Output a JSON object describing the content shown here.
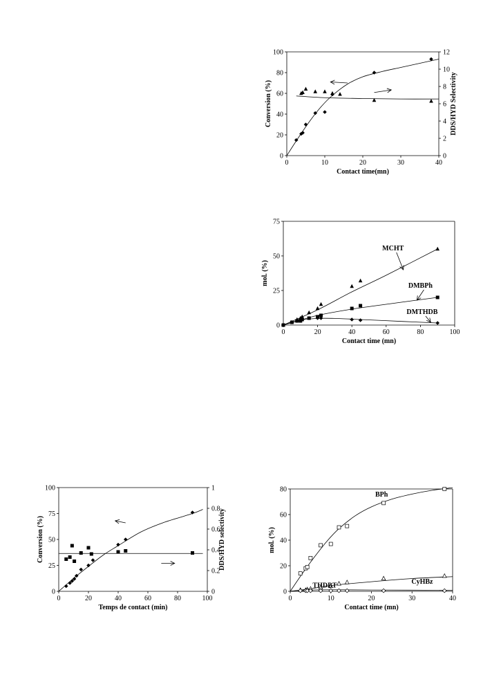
{
  "chart_data": [
    {
      "id": "a",
      "type": "scatter",
      "xlabel": "Contact time(mn)",
      "ylabel": "Conversion (%)",
      "y2label": "DDS/HYD Selectivity",
      "xlim": [
        0,
        40
      ],
      "ylim": [
        0,
        100
      ],
      "y2lim": [
        0,
        12
      ],
      "xticks": [
        0,
        10,
        20,
        30,
        40
      ],
      "yticks": [
        0,
        20,
        40,
        60,
        80,
        100
      ],
      "y2ticks": [
        0,
        2,
        4,
        6,
        8,
        10,
        12
      ],
      "series": [
        {
          "axis": "y",
          "marker": "diamond",
          "x": [
            2.5,
            3.8,
            4.2,
            5.0,
            7.5,
            10.0,
            12.0,
            23.0,
            38.0
          ],
          "y": [
            15,
            21,
            22,
            30,
            41,
            42,
            59,
            80,
            93
          ],
          "curve": [
            [
              0,
              0
            ],
            [
              3,
              17
            ],
            [
              6,
              33
            ],
            [
              9,
              47
            ],
            [
              12,
              58
            ],
            [
              16,
              69
            ],
            [
              20,
              76
            ],
            [
              25,
              81
            ],
            [
              30,
              85
            ],
            [
              35,
              89
            ],
            [
              40,
              93
            ]
          ]
        },
        {
          "axis": "y2",
          "marker": "triangle",
          "x": [
            3.8,
            4.2,
            5.0,
            7.5,
            10.0,
            12.0,
            14.0,
            23.0,
            38.0
          ],
          "y": [
            7.2,
            7.3,
            7.7,
            7.4,
            7.4,
            7.2,
            7.1,
            6.4,
            6.3
          ],
          "curve": [
            [
              2.5,
              6.9
            ],
            [
              10,
              6.7
            ],
            [
              20,
              6.6
            ],
            [
              30,
              6.55
            ],
            [
              40,
              6.55
            ]
          ]
        }
      ],
      "arrows": [
        {
          "from": [
            16,
            70
          ],
          "to": [
            11.5,
            71
          ]
        },
        {
          "from": [
            23,
            7.3
          ],
          "to": [
            27.5,
            7.6
          ],
          "axis": "y2"
        }
      ]
    },
    {
      "id": "b",
      "type": "scatter",
      "xlabel": "Contact time (mn)",
      "ylabel": "mol. (%)",
      "xlim": [
        0,
        100
      ],
      "ylim": [
        0,
        75
      ],
      "xticks": [
        0,
        20,
        40,
        60,
        80,
        100
      ],
      "yticks": [
        0,
        25,
        50,
        75
      ],
      "series": [
        {
          "name": "MCHT",
          "marker": "triangle",
          "x": [
            0,
            5,
            8,
            10,
            11,
            15,
            20,
            22,
            40,
            45,
            90
          ],
          "y": [
            0,
            2,
            4,
            5,
            6,
            9,
            12,
            15,
            28,
            32,
            55
          ],
          "curve": [
            [
              0,
              0
            ],
            [
              20,
              11
            ],
            [
              40,
              24
            ],
            [
              60,
              36
            ],
            [
              90,
              55
            ]
          ]
        },
        {
          "name": "DMBPh",
          "marker": "square",
          "x": [
            0,
            5,
            8,
            10,
            11,
            15,
            20,
            22,
            40,
            45,
            90
          ],
          "y": [
            0,
            2,
            3,
            3,
            4,
            5,
            6,
            7,
            12,
            14,
            20
          ],
          "curve": [
            [
              0,
              0
            ],
            [
              10,
              3.5
            ],
            [
              20,
              7
            ],
            [
              40,
              11.5
            ],
            [
              60,
              15
            ],
            [
              90,
              20
            ]
          ]
        },
        {
          "name": "DMTHDB",
          "marker": "diamond",
          "x": [
            0,
            5,
            8,
            10,
            11,
            15,
            20,
            22,
            40,
            45,
            90
          ],
          "y": [
            0,
            2,
            3,
            3,
            4,
            5,
            5,
            5,
            4,
            3.5,
            1.5
          ],
          "curve": [
            [
              0,
              0
            ],
            [
              10,
              3.6
            ],
            [
              20,
              4.8
            ],
            [
              30,
              4.8
            ],
            [
              45,
              4.0
            ],
            [
              70,
              2.6
            ],
            [
              90,
              1.5
            ]
          ]
        }
      ],
      "labels": [
        {
          "text": "MCHT",
          "x": 64,
          "y": 54,
          "arrow_to": [
            70,
            40
          ]
        },
        {
          "text": "DMBPh",
          "x": 80,
          "y": 27,
          "arrow_to": [
            78,
            18
          ]
        },
        {
          "text": "DMTHDB",
          "x": 81,
          "y": 8,
          "arrow_to": [
            86,
            2
          ]
        }
      ]
    },
    {
      "id": "c",
      "type": "scatter",
      "xlabel": "Temps de contact (min)",
      "ylabel": "Conversion (%)",
      "y2label": "DDS/HYD selectivity",
      "xlim": [
        0,
        100
      ],
      "ylim": [
        0,
        100
      ],
      "y2lim": [
        0,
        1
      ],
      "xticks": [
        0,
        20,
        40,
        60,
        80,
        100
      ],
      "yticks": [
        0,
        25,
        50,
        75,
        100
      ],
      "y2ticks": [
        0,
        0.2,
        0.4,
        0.6,
        0.8,
        1
      ],
      "y2ticklabels": [
        "0",
        "0.2",
        "0.4",
        "0.6",
        "0.8",
        "1"
      ],
      "series": [
        {
          "axis": "y",
          "marker": "diamond",
          "x": [
            5,
            7.5,
            9,
            10.5,
            12,
            15,
            20,
            23,
            40,
            45,
            90
          ],
          "y": [
            5,
            8,
            10,
            12,
            15,
            21,
            25,
            30,
            45,
            50,
            76
          ],
          "curve": [
            [
              0,
              0
            ],
            [
              10,
              12.5
            ],
            [
              20,
              24
            ],
            [
              30,
              35
            ],
            [
              40,
              44
            ],
            [
              55,
              57
            ],
            [
              70,
              66
            ],
            [
              90,
              75
            ],
            [
              97,
              79
            ]
          ]
        },
        {
          "axis": "y2",
          "marker": "square",
          "x": [
            5,
            7.5,
            9,
            10.5,
            15,
            20,
            22,
            40,
            45,
            90
          ],
          "y": [
            0.31,
            0.33,
            0.44,
            0.29,
            0.37,
            0.42,
            0.36,
            0.38,
            0.39,
            0.37
          ],
          "curve": [
            [
              0,
              0.365
            ],
            [
              97,
              0.365
            ]
          ]
        }
      ],
      "arrows": [
        {
          "from": [
            45,
            66
          ],
          "to": [
            38,
            68
          ]
        },
        {
          "from": [
            69,
            0.27
          ],
          "to": [
            78,
            0.27
          ],
          "axis": "y2"
        }
      ]
    },
    {
      "id": "d",
      "type": "scatter",
      "xlabel": "Contact time (mn)",
      "ylabel": "mol. (%)",
      "xlim": [
        0,
        40
      ],
      "ylim": [
        0,
        80
      ],
      "xticks": [
        0,
        10,
        20,
        30,
        40
      ],
      "yticks": [
        0,
        20,
        40,
        60,
        80
      ],
      "series": [
        {
          "name": "BPh",
          "marker": "open-square",
          "x": [
            2.5,
            3.8,
            4.2,
            5.0,
            7.5,
            10.0,
            12.0,
            14.0,
            23.0,
            38.0
          ],
          "y": [
            14,
            18,
            19,
            26,
            36,
            37,
            50,
            51,
            69,
            80
          ],
          "curve": [
            [
              0,
              0
            ],
            [
              3,
              14
            ],
            [
              6,
              27
            ],
            [
              9,
              39
            ],
            [
              12,
              49
            ],
            [
              16,
              59
            ],
            [
              20,
              66
            ],
            [
              25,
              72
            ],
            [
              30,
              76
            ],
            [
              35,
              79
            ],
            [
              40,
              81
            ]
          ]
        },
        {
          "name": "CyHBz",
          "marker": "open-triangle",
          "x": [
            2.5,
            3.8,
            4.2,
            5.0,
            7.5,
            10.0,
            12.0,
            14.0,
            23.0,
            38.0
          ],
          "y": [
            1,
            1,
            1.5,
            2,
            3,
            4,
            6,
            7,
            10,
            12
          ],
          "curve": [
            [
              0,
              0
            ],
            [
              5,
              2
            ],
            [
              10,
              4.5
            ],
            [
              20,
              7.5
            ],
            [
              30,
              10
            ],
            [
              40,
              11.5
            ]
          ]
        },
        {
          "name": "THDBT",
          "marker": "open-diamond",
          "x": [
            2.5,
            3.8,
            4.2,
            5.0,
            7.5,
            10.0,
            12.0,
            14.0,
            23.0,
            38.0
          ],
          "y": [
            0.5,
            0.5,
            0.5,
            0.5,
            0.5,
            0.5,
            0.5,
            0.5,
            0.5,
            0.5
          ],
          "curve": [
            [
              0,
              0
            ],
            [
              3,
              0.8
            ],
            [
              10,
              1.2
            ],
            [
              20,
              1.0
            ],
            [
              40,
              0.8
            ]
          ]
        }
      ],
      "labels": [
        {
          "text": "BPh",
          "x": 22.5,
          "y": 74
        },
        {
          "text": "CyHBz",
          "x": 32.5,
          "y": 6
        },
        {
          "text": "THDBT",
          "x": 8.5,
          "y": 3
        }
      ]
    }
  ]
}
